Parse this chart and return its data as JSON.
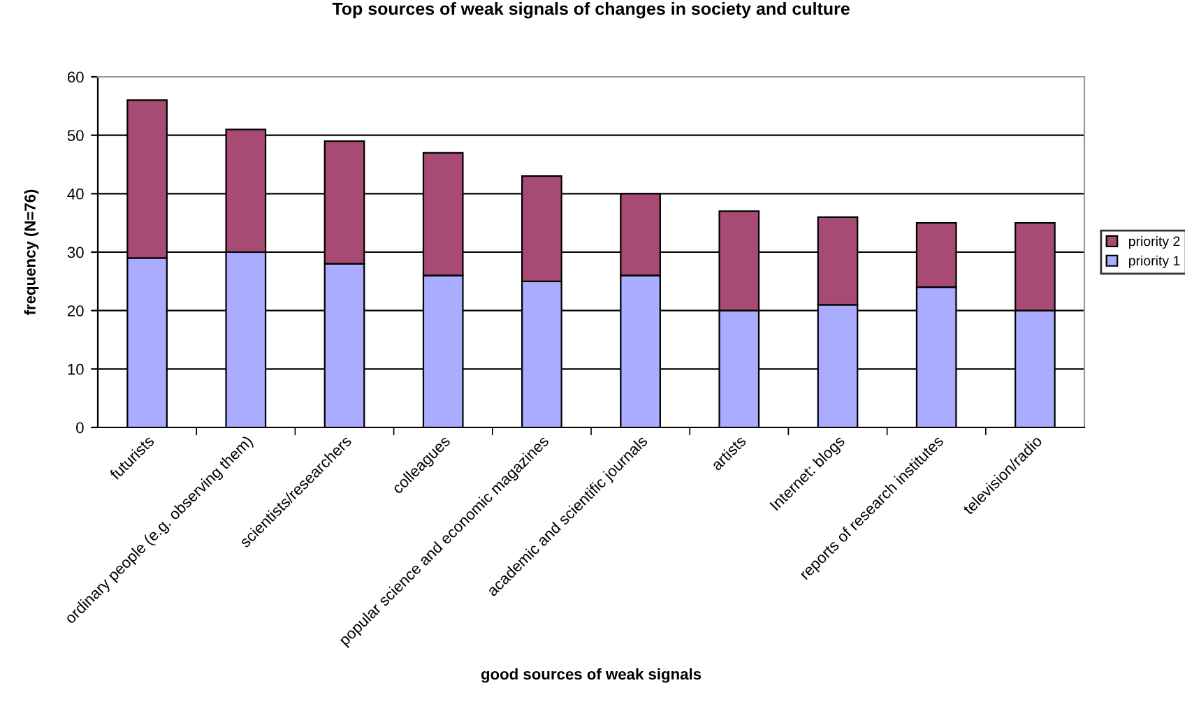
{
  "chart_data": {
    "type": "bar",
    "title": "Top sources of weak signals of changes in society and culture",
    "xlabel": "good sources of weak signals",
    "ylabel": "frequency (N=76)",
    "categories": [
      "futurists",
      "ordinary people (e.g. observing them)",
      "scientists/researchers",
      "colleagues",
      "popular science and economic magazines",
      "academic and scientific journals",
      "artists",
      "Internet: blogs",
      "reports of research institutes",
      "television/radio"
    ],
    "series": [
      {
        "name": "priority 1",
        "color": "#a9acff",
        "values": [
          29,
          30,
          28,
          26,
          25,
          26,
          20,
          21,
          24,
          20
        ]
      },
      {
        "name": "priority 2",
        "color": "#a84b74",
        "values": [
          27,
          21,
          21,
          21,
          18,
          14,
          17,
          15,
          11,
          15
        ]
      }
    ],
    "stacked": true,
    "ylim": [
      0,
      60
    ],
    "yticks": [
      0,
      10,
      20,
      30,
      40,
      50,
      60
    ],
    "grid": "y",
    "legend": "right"
  }
}
